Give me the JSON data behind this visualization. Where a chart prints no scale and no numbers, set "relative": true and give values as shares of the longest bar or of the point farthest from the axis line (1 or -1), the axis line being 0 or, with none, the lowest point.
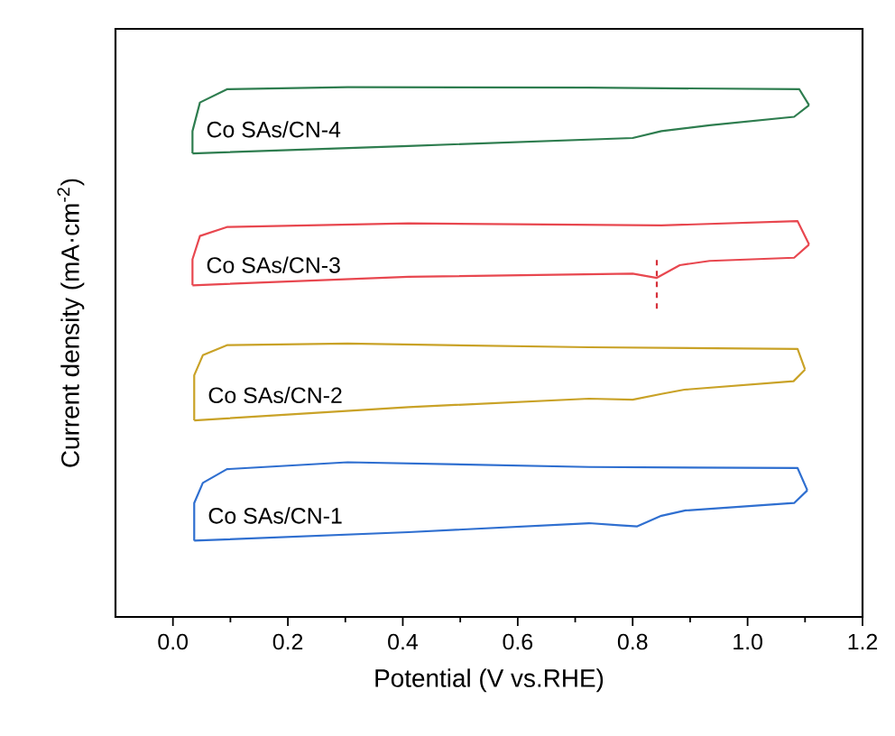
{
  "chart_data": {
    "type": "line",
    "relative": true,
    "xlabel": "Potential (V vs.RHE)",
    "ylabel": "Current density (mA·cm$^{-2}$)",
    "xlim": [
      -0.1,
      1.2
    ],
    "xticks": [
      {
        "value": 0,
        "label": "0.0"
      },
      {
        "value": 0.2,
        "label": "0.2"
      },
      {
        "value": 0.4,
        "label": "0.4"
      },
      {
        "value": 0.6,
        "label": "0.6"
      },
      {
        "value": 0.8,
        "label": "0.8"
      },
      {
        "value": 1,
        "label": "1.0"
      },
      {
        "value": 1.2,
        "label": "1.2"
      }
    ],
    "grid": false,
    "legend": false,
    "marker": "none",
    "line_style": "solid",
    "series": [
      {
        "name": "Co SAs/CN-1",
        "color": "#2f6fd0",
        "x": [
          0.037,
          0.41,
          0.724,
          0.777,
          0.808,
          0.85,
          0.892,
          1.081,
          1.104
        ],
        "values": [
          0.144,
          0.16,
          0.177,
          0.173,
          0.171,
          0.191,
          0.201,
          0.215,
          0.239
        ]
      },
      {
        "color": "#2f6fd0",
        "x": [
          0.037,
          0.037,
          0.052,
          0.094,
          0.304,
          0.724,
          1.087,
          1.104
        ],
        "values": [
          0.144,
          0.215,
          0.253,
          0.279,
          0.292,
          0.283,
          0.281,
          0.239
        ]
      },
      {
        "name": "Co SAs/CN-2",
        "color": "#c9a227",
        "x": [
          0.037,
          0.41,
          0.724,
          0.8,
          0.85,
          0.89,
          1.08,
          1.1
        ],
        "values": [
          0.371,
          0.396,
          0.412,
          0.41,
          0.421,
          0.429,
          0.445,
          0.467
        ]
      },
      {
        "color": "#c9a227",
        "x": [
          0.037,
          0.037,
          0.052,
          0.094,
          0.304,
          0.724,
          1.087,
          1.1
        ],
        "values": [
          0.371,
          0.456,
          0.494,
          0.513,
          0.516,
          0.509,
          0.506,
          0.467
        ]
      },
      {
        "name": "Co SAs/CN-3",
        "color": "#e8474f",
        "x": [
          0.034,
          0.41,
          0.8,
          0.842,
          0.882,
          0.934,
          1.081,
          1.107
        ],
        "values": [
          0.626,
          0.642,
          0.648,
          0.64,
          0.664,
          0.672,
          0.678,
          0.703
        ]
      },
      {
        "color": "#e8474f",
        "x": [
          0.034,
          0.034,
          0.047,
          0.094,
          0.41,
          0.85,
          1.087,
          1.107
        ],
        "values": [
          0.626,
          0.675,
          0.719,
          0.736,
          0.743,
          0.739,
          0.747,
          0.703
        ]
      },
      {
        "color": "#d6303a",
        "line_style": "dashed",
        "x": [
          0.842,
          0.842
        ],
        "values": [
          0.582,
          0.675
        ]
      },
      {
        "name": "Co SAs/CN-4",
        "color": "#2e7d4f",
        "x": [
          0.034,
          0.41,
          0.8,
          0.85,
          0.934,
          1.081,
          1.107
        ],
        "values": [
          0.875,
          0.889,
          0.904,
          0.917,
          0.928,
          0.944,
          0.966
        ]
      },
      {
        "color": "#2e7d4f",
        "x": [
          0.034,
          0.034,
          0.047,
          0.094,
          0.304,
          0.724,
          1.09,
          1.107
        ],
        "values": [
          0.875,
          0.917,
          0.971,
          0.996,
          1.0,
          0.999,
          0.996,
          0.966
        ]
      }
    ]
  }
}
